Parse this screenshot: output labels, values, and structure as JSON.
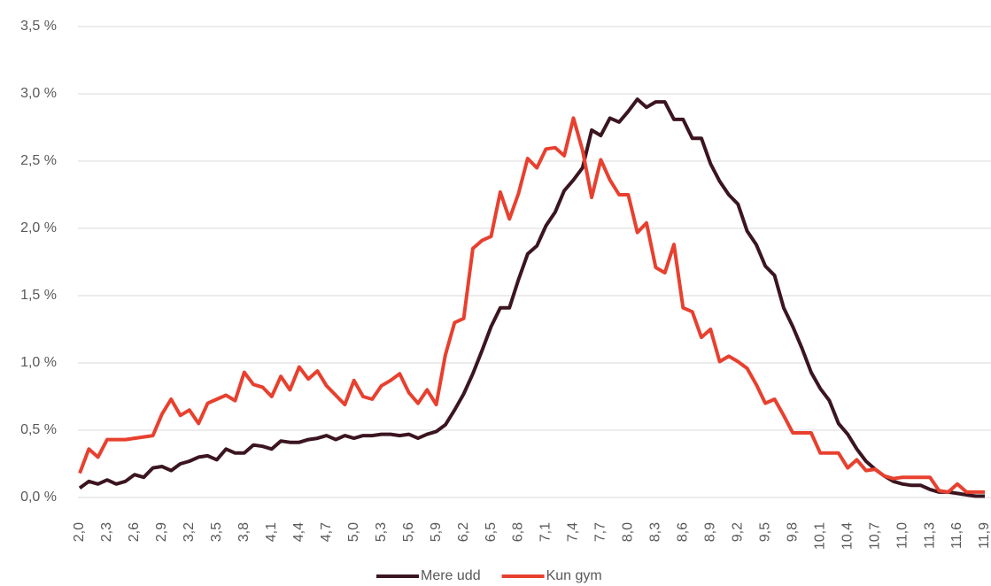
{
  "chart_data": {
    "type": "line",
    "categories": [
      "2,0",
      null,
      null,
      "2,3",
      null,
      null,
      "2,6",
      null,
      null,
      "2,9",
      null,
      null,
      "3,2",
      null,
      null,
      "3,5",
      null,
      null,
      "3,8",
      null,
      null,
      "4,1",
      null,
      null,
      "4,4",
      null,
      null,
      "4,7",
      null,
      null,
      "5,0",
      null,
      null,
      "5,3",
      null,
      null,
      "5,6",
      null,
      null,
      "5,9",
      null,
      null,
      "6,2",
      null,
      null,
      "6,5",
      null,
      null,
      "6,8",
      null,
      null,
      "7,1",
      null,
      null,
      "7,4",
      null,
      null,
      "7,7",
      null,
      null,
      "8,0",
      null,
      null,
      "8,3",
      null,
      null,
      "8,6",
      null,
      null,
      "8,9",
      null,
      null,
      "9,2",
      null,
      null,
      "9,5",
      null,
      null,
      "9,8",
      null,
      null,
      "10,1",
      null,
      null,
      "10,4",
      null,
      null,
      "10,7",
      null,
      null,
      "11,0",
      null,
      null,
      "11,3",
      null,
      null,
      "11,6",
      null,
      null,
      "11,9"
    ],
    "series": [
      {
        "name": "Mere udd",
        "color": "#3b1520",
        "values": [
          0.07,
          0.12,
          0.1,
          0.13,
          0.1,
          0.12,
          0.17,
          0.15,
          0.22,
          0.23,
          0.2,
          0.25,
          0.27,
          0.3,
          0.31,
          0.28,
          0.36,
          0.33,
          0.33,
          0.39,
          0.38,
          0.36,
          0.42,
          0.41,
          0.41,
          0.43,
          0.44,
          0.46,
          0.43,
          0.46,
          0.44,
          0.46,
          0.46,
          0.47,
          0.47,
          0.46,
          0.47,
          0.44,
          0.47,
          0.49,
          0.54,
          0.65,
          0.77,
          0.92,
          1.09,
          1.27,
          1.41,
          1.41,
          1.62,
          1.81,
          1.87,
          2.02,
          2.12,
          2.28,
          2.36,
          2.45,
          2.73,
          2.69,
          2.82,
          2.79,
          2.87,
          2.96,
          2.9,
          2.94,
          2.94,
          2.81,
          2.81,
          2.67,
          2.67,
          2.48,
          2.35,
          2.25,
          2.18,
          1.98,
          1.88,
          1.72,
          1.65,
          1.41,
          1.27,
          1.11,
          0.93,
          0.81,
          0.72,
          0.55,
          0.47,
          0.36,
          0.27,
          0.21,
          0.16,
          0.12,
          0.1,
          0.09,
          0.09,
          0.06,
          0.04,
          0.04,
          0.03,
          0.02,
          0.01,
          0.01
        ]
      },
      {
        "name": "Kun gym",
        "color": "#e8402f",
        "values": [
          0.18,
          0.36,
          0.3,
          0.43,
          0.43,
          0.43,
          0.44,
          0.45,
          0.46,
          0.62,
          0.73,
          0.61,
          0.65,
          0.55,
          0.7,
          0.73,
          0.76,
          0.72,
          0.93,
          0.84,
          0.82,
          0.75,
          0.9,
          0.8,
          0.97,
          0.88,
          0.94,
          0.83,
          0.76,
          0.69,
          0.87,
          0.75,
          0.73,
          0.83,
          0.87,
          0.92,
          0.78,
          0.7,
          0.8,
          0.69,
          1.06,
          1.3,
          1.33,
          1.85,
          1.91,
          1.94,
          2.27,
          2.07,
          2.26,
          2.52,
          2.45,
          2.59,
          2.6,
          2.54,
          2.82,
          2.58,
          2.23,
          2.51,
          2.36,
          2.25,
          2.25,
          1.97,
          2.04,
          1.71,
          1.67,
          1.88,
          1.41,
          1.38,
          1.19,
          1.25,
          1.01,
          1.05,
          1.01,
          0.96,
          0.84,
          0.7,
          0.73,
          0.61,
          0.48,
          0.48,
          0.48,
          0.33,
          0.33,
          0.33,
          0.22,
          0.28,
          0.2,
          0.21,
          0.16,
          0.14,
          0.15,
          0.15,
          0.15,
          0.15,
          0.05,
          0.04,
          0.1,
          0.04,
          0.04,
          0.04
        ]
      }
    ],
    "ylim": [
      0,
      3.5
    ],
    "yticks": [
      {
        "value": 0,
        "label": "0,0 %"
      },
      {
        "value": 0.5,
        "label": "0,5 %"
      },
      {
        "value": 1,
        "label": "1,0 %"
      },
      {
        "value": 1.5,
        "label": "1,5 %"
      },
      {
        "value": 2,
        "label": "2,0 %"
      },
      {
        "value": 2.5,
        "label": "2,5 %"
      },
      {
        "value": 3,
        "label": "3,0 %"
      },
      {
        "value": 3.5,
        "label": "3,5 %"
      }
    ],
    "grid": true,
    "legend": "bottom"
  }
}
